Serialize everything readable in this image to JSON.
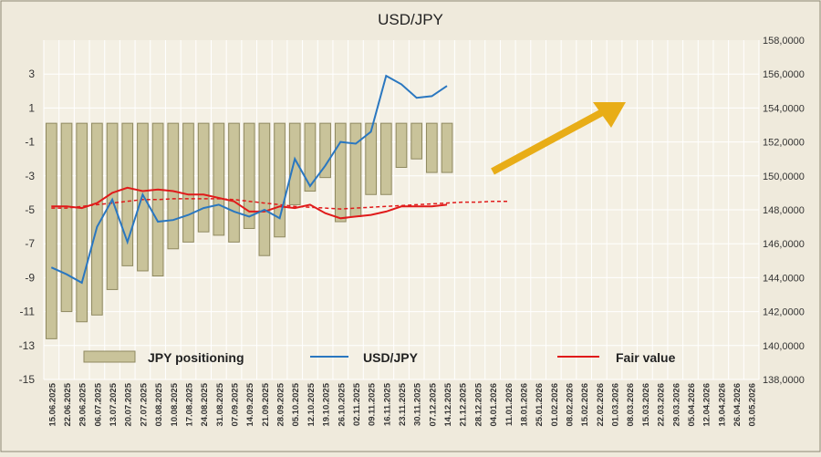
{
  "chart_data": {
    "type": "bar+line",
    "title": "USD/JPY",
    "colors": {
      "background": "#efeadc",
      "bar_fill": "#c9c39a",
      "bar_edge": "#8f8960",
      "usdjpy_line": "#2a77c0",
      "fair_value": "#e01a1a",
      "arrow": "#e8ad17",
      "grid": "#ffffff",
      "axis_text": "#333333"
    },
    "left_axis": {
      "ylim": [
        -15,
        5
      ],
      "ticks": [
        3,
        1,
        -1,
        -3,
        -5,
        -7,
        -9,
        -11,
        -13,
        -15
      ],
      "tick_labels": [
        "3",
        "1",
        "-1",
        "-3",
        "-5",
        "-7",
        "-9",
        "-11",
        "-13",
        "-15"
      ]
    },
    "right_axis": {
      "ylim": [
        138000,
        158000
      ],
      "ticks": [
        158000,
        156000,
        154000,
        152000,
        150000,
        148000,
        146000,
        144000,
        142000,
        140000,
        138000
      ],
      "tick_labels": [
        "158,0000",
        "156,0000",
        "154,0000",
        "152,0000",
        "150,0000",
        "148,0000",
        "146,0000",
        "144,0000",
        "142,0000",
        "140,0000",
        "138,0000"
      ]
    },
    "x_labels": [
      "15.06.2025",
      "22.06.2025",
      "29.06.2025",
      "06.07.2025",
      "13.07.2025",
      "20.07.2025",
      "27.07.2025",
      "03.08.2025",
      "10.08.2025",
      "17.08.2025",
      "24.08.2025",
      "31.08.2025",
      "07.09.2025",
      "14.09.2025",
      "21.09.2025",
      "28.09.2025",
      "05.10.2025",
      "12.10.2025",
      "19.10.2025",
      "26.10.2025",
      "02.11.2025",
      "09.11.2025",
      "16.11.2025",
      "23.11.2025",
      "30.11.2025",
      "07.12.2025",
      "14.12.2025",
      "21.12.2025",
      "28.12.2025",
      "04.01.2026",
      "11.01.2026",
      "18.01.2026",
      "25.01.2026",
      "01.02.2026",
      "08.02.2026",
      "15.02.2026",
      "22.02.2026",
      "01.03.2026",
      "08.03.2026",
      "15.03.2026",
      "22.03.2026",
      "29.03.2026",
      "05.04.2026",
      "12.04.2026",
      "19.04.2026",
      "26.04.2026",
      "03.05.2026"
    ],
    "series": [
      {
        "name": "JPY positioning",
        "type": "bar",
        "axis": "left",
        "values": [
          -12.6,
          -11,
          -11.6,
          -11.2,
          -9.7,
          -8.3,
          -8.6,
          -8.9,
          -7.3,
          -6.9,
          -6.3,
          -6.5,
          -6.9,
          -6.1,
          -7.7,
          -6.6,
          -4.7,
          -3.9,
          -3.1,
          -5.7,
          -5.4,
          -4.1,
          -4.1,
          -2.5,
          -2,
          -2.8,
          -2.8
        ]
      },
      {
        "name": "USD/JPY",
        "type": "line",
        "axis": "right",
        "values": [
          144.6,
          144.2,
          143.7,
          147.0,
          148.6,
          146.1,
          148.9,
          147.3,
          147.4,
          147.7,
          148.1,
          148.3,
          147.9,
          147.6,
          148.0,
          147.5,
          151.0,
          149.4,
          150.6,
          152.0,
          151.9,
          152.6,
          155.9,
          155.4,
          154.6,
          154.7,
          155.3
        ]
      },
      {
        "name": "Fair value",
        "type": "area-line",
        "axis": "left",
        "values": [
          -4.9,
          -4.9,
          -4.8,
          -4.7,
          -4.6,
          -4.5,
          -4.4,
          -4.4,
          -4.35,
          -4.35,
          -4.35,
          -4.35,
          -4.4,
          -4.5,
          -4.6,
          -4.7,
          -4.8,
          -4.85,
          -4.9,
          -4.95,
          -4.9,
          -4.85,
          -4.8,
          -4.75,
          -4.7,
          -4.65,
          -4.6,
          -4.55,
          -4.55,
          -4.5,
          -4.5
        ],
        "actual": [
          -4.8,
          -4.8,
          -4.9,
          -4.6,
          -4.0,
          -3.7,
          -3.9,
          -3.8,
          -3.9,
          -4.1,
          -4.1,
          -4.3,
          -4.5,
          -5.1,
          -5.1,
          -4.8,
          -4.9,
          -4.7,
          -5.2,
          -5.5,
          -5.4,
          -5.3,
          -5.1,
          -4.8,
          -4.8,
          -4.8,
          -4.7
        ]
      }
    ],
    "legend": [
      {
        "label": "JPY positioning",
        "symbol": "bar"
      },
      {
        "label": "USD/JPY",
        "symbol": "line"
      },
      {
        "label": "Fair value",
        "symbol": "line"
      }
    ],
    "annotation": {
      "type": "arrow",
      "direction": "up-right",
      "color": "#e8ad17"
    }
  }
}
